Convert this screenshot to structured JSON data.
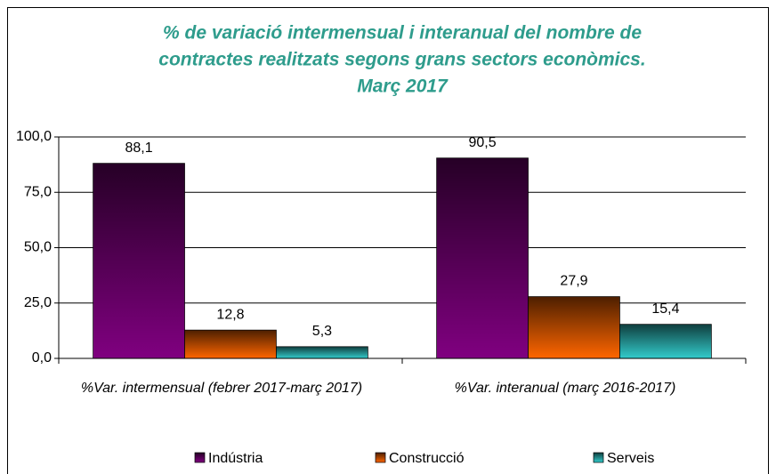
{
  "chart_data": {
    "type": "bar",
    "title": [
      "% de variació intermensual i interanual del nombre de",
      "contractes realitzats segons grans sectors econòmics.",
      "Març 2017"
    ],
    "categories": [
      "%Var. intermensual (febrer 2017-març 2017)",
      "%Var. interanual (març 2016-2017)"
    ],
    "series": [
      {
        "name": "Indústria",
        "color": "#800080",
        "values": [
          88.1,
          90.5
        ],
        "value_labels": [
          "88,1",
          "90,5"
        ]
      },
      {
        "name": "Construcció",
        "color": "#ff6600",
        "values": [
          12.8,
          27.9
        ],
        "value_labels": [
          "12,8",
          "27,9"
        ]
      },
      {
        "name": "Serveis",
        "color": "#33cccc",
        "values": [
          5.3,
          15.4
        ],
        "value_labels": [
          "5,3",
          "15,4"
        ]
      }
    ],
    "ylim": [
      0,
      100
    ],
    "yticks": [
      {
        "value": 0,
        "label": "0,0"
      },
      {
        "value": 25,
        "label": "25,0"
      },
      {
        "value": 50,
        "label": "50,0"
      },
      {
        "value": 75,
        "label": "75,0"
      },
      {
        "value": 100,
        "label": "100,0"
      }
    ],
    "grid": true,
    "legend": "bottom"
  }
}
